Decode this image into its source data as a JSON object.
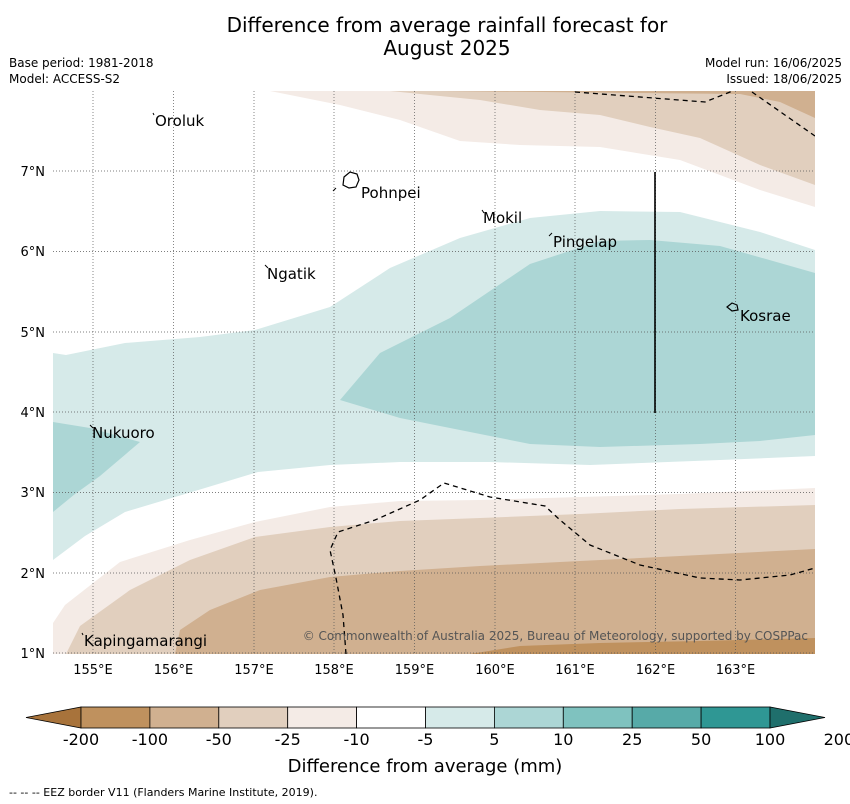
{
  "title_line1": "Difference from average rainfall forecast for",
  "title_line2": "August 2025",
  "base_period": "Base period: 1981-2018",
  "model": "Model: ACCESS-S2",
  "model_run": "Model run: 16/06/2025",
  "issued": "Issued: 18/06/2025",
  "copyright": "© Commonwealth of Australia 2025, Bureau of Meteorology, supported by COSPPac",
  "footnote": "--  --  -- EEZ border V11 (Flanders Marine Institute, 2019).",
  "map": {
    "lon_labels": [
      "155°E",
      "156°E",
      "157°E",
      "158°E",
      "159°E",
      "160°E",
      "161°E",
      "162°E",
      "163°E"
    ],
    "lat_labels": [
      "7°N",
      "6°N",
      "5°N",
      "4°N",
      "3°N",
      "2°N",
      "1°N"
    ],
    "places": [
      {
        "name": "Oroluk"
      },
      {
        "name": "Pohnpei"
      },
      {
        "name": "Mokil"
      },
      {
        "name": "Pingelap"
      },
      {
        "name": "Ngatik"
      },
      {
        "name": "Kosrae"
      },
      {
        "name": "Nukuoro"
      },
      {
        "name": "Kapingamarangi"
      }
    ]
  },
  "legend": {
    "colors": [
      "#a8733b",
      "#bf915e",
      "#d0b090",
      "#e1cfbe",
      "#f4ebe6",
      "#ffffff",
      "#d6eae9",
      "#acd6d5",
      "#7fc2bf",
      "#57aaa8",
      "#2f9794",
      "#1f6f6c"
    ],
    "ticks": [
      "-200",
      "-100",
      "-50",
      "-25",
      "-10",
      "-5",
      "5",
      "10",
      "25",
      "50",
      "100",
      "200"
    ],
    "label": "Difference from average (mm)"
  }
}
